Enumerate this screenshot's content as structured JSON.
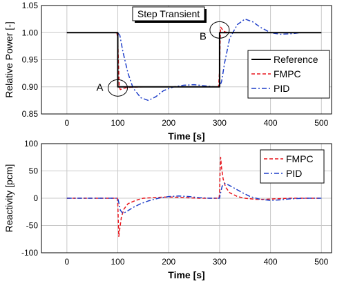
{
  "chart_data": [
    {
      "type": "line",
      "annotation_title": "Step Transient",
      "xlabel": "Time [s]",
      "ylabel": "Relative Power [-]",
      "xlim": [
        -50,
        520
      ],
      "ylim": [
        0.85,
        1.05
      ],
      "xticks": [
        "0",
        "100",
        "200",
        "300",
        "400",
        "500"
      ],
      "xtick_values": [
        0,
        100,
        200,
        300,
        400,
        500
      ],
      "yticks": [
        "0.85",
        "0.90",
        "0.95",
        "1.00",
        "1.05"
      ],
      "ytick_values": [
        0.85,
        0.9,
        0.95,
        1.0,
        1.05
      ],
      "grid": true,
      "legend_position": "right",
      "annotations": [
        {
          "label": "A",
          "x": 100,
          "y": 0.898
        },
        {
          "label": "B",
          "x": 300,
          "y": 1.005
        }
      ],
      "series": [
        {
          "name": "Reference",
          "color": "#000000",
          "style": "solid",
          "width": 2,
          "x": [
            0,
            100,
            100,
            300,
            300,
            500
          ],
          "y": [
            1.0,
            1.0,
            0.9,
            0.9,
            1.0,
            1.0
          ]
        },
        {
          "name": "FMPC",
          "color": "#e8141b",
          "style": "dashed",
          "width": 1.5,
          "x": [
            0,
            98,
            100,
            101,
            103,
            105,
            110,
            120,
            150,
            200,
            250,
            298,
            300,
            301,
            302,
            304,
            307,
            312,
            320,
            350,
            400,
            500
          ],
          "y": [
            1.0,
            1.0,
            0.99,
            0.95,
            0.9,
            0.895,
            0.897,
            0.899,
            0.9,
            0.9,
            0.9,
            0.9,
            0.93,
            0.98,
            1.01,
            1.008,
            1.003,
            1.001,
            1.0,
            1.0,
            1.0,
            1.0
          ]
        },
        {
          "name": "PID",
          "color": "#1f3fc9",
          "style": "dashdot",
          "width": 1.5,
          "x": [
            0,
            100,
            104,
            110,
            120,
            130,
            145,
            160,
            175,
            190,
            210,
            230,
            250,
            270,
            290,
            300,
            304,
            310,
            320,
            335,
            350,
            365,
            380,
            400,
            420,
            440,
            460,
            500
          ],
          "y": [
            1.0,
            1.0,
            0.995,
            0.965,
            0.925,
            0.898,
            0.88,
            0.875,
            0.882,
            0.893,
            0.9,
            0.903,
            0.904,
            0.902,
            0.9,
            0.9,
            0.91,
            0.945,
            0.99,
            1.015,
            1.025,
            1.02,
            1.01,
            1.0,
            0.997,
            0.998,
            1.0,
            1.0
          ]
        }
      ]
    },
    {
      "type": "line",
      "xlabel": "Time [s]",
      "ylabel": "Reactivity [pcm]",
      "xlim": [
        -50,
        520
      ],
      "ylim": [
        -100,
        100
      ],
      "xticks": [
        "0",
        "100",
        "200",
        "300",
        "400",
        "500"
      ],
      "xtick_values": [
        0,
        100,
        200,
        300,
        400,
        500
      ],
      "yticks": [
        "-100",
        "-50",
        "0",
        "50",
        "100"
      ],
      "ytick_values": [
        -100,
        -50,
        0,
        50,
        100
      ],
      "grid": true,
      "legend_position": "top-right",
      "series": [
        {
          "name": "FMPC",
          "color": "#e8141b",
          "style": "dashed",
          "width": 1.5,
          "x": [
            0,
            99,
            100,
            101,
            102,
            104,
            107,
            112,
            120,
            135,
            150,
            170,
            190,
            210,
            230,
            260,
            299,
            300,
            301,
            302,
            304,
            307,
            312,
            320,
            335,
            350,
            370,
            390,
            410,
            440,
            500
          ],
          "y": [
            0,
            0,
            -10,
            -45,
            -70,
            -55,
            -35,
            -20,
            -10,
            -4,
            0,
            1,
            2,
            2,
            1,
            0,
            0,
            10,
            50,
            75,
            55,
            35,
            20,
            10,
            3,
            0,
            -2,
            -2,
            -1,
            0,
            0
          ]
        },
        {
          "name": "PID",
          "color": "#1f3fc9",
          "style": "dashdot",
          "width": 1.5,
          "x": [
            0,
            100,
            102,
            105,
            110,
            118,
            130,
            145,
            160,
            180,
            200,
            220,
            240,
            260,
            280,
            300,
            302,
            305,
            310,
            318,
            330,
            345,
            360,
            380,
            400,
            420,
            440,
            470,
            500
          ],
          "y": [
            0,
            0,
            -8,
            -22,
            -28,
            -24,
            -17,
            -10,
            -5,
            0,
            3,
            4,
            3,
            1,
            0,
            0,
            10,
            22,
            27,
            24,
            18,
            10,
            3,
            -2,
            -4,
            -3,
            -1,
            0,
            0
          ]
        }
      ]
    }
  ]
}
